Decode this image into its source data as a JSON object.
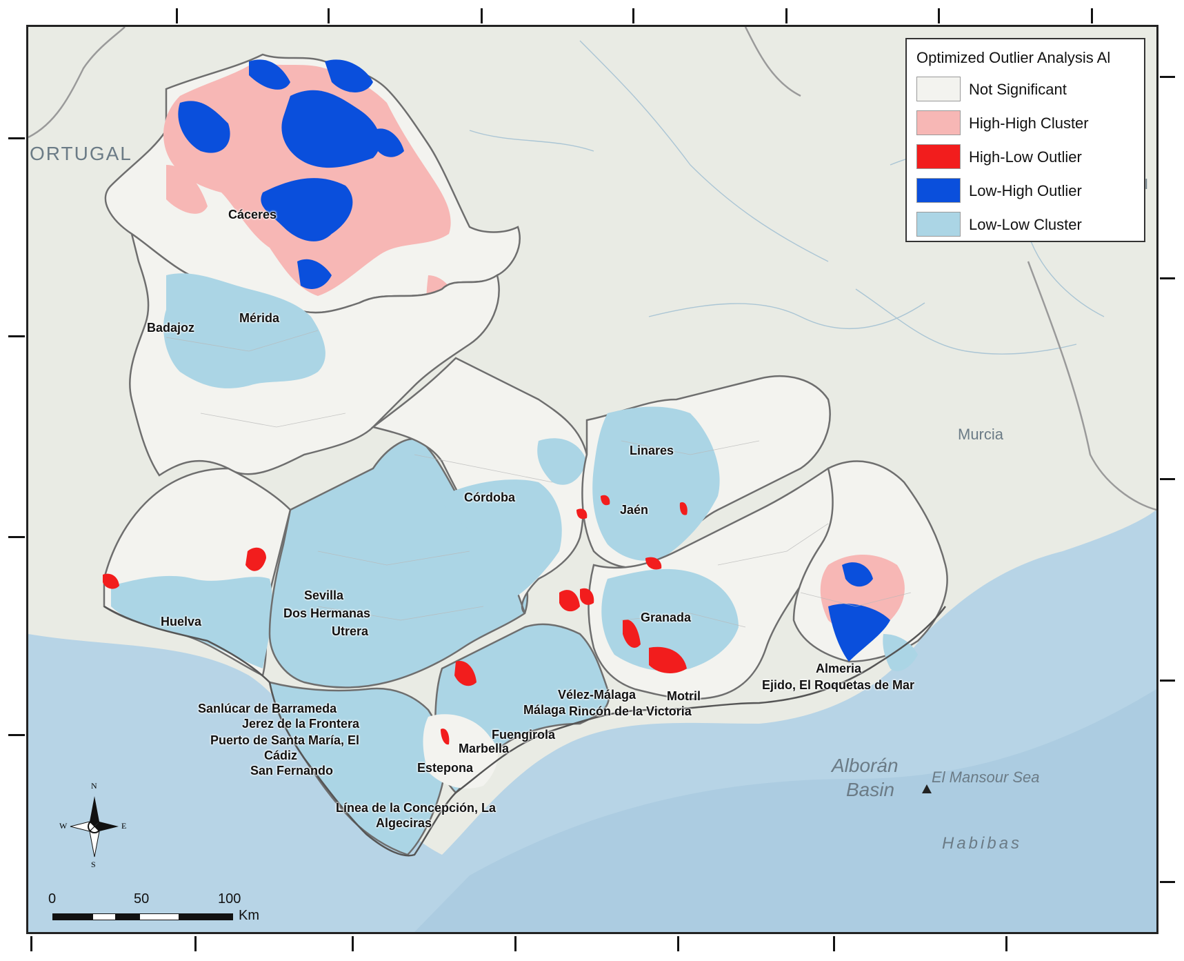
{
  "legend": {
    "title": "Optimized Outlier Analysis Al",
    "items": [
      {
        "label": "Not Significant",
        "color": "#f3f3ef"
      },
      {
        "label": "High-High Cluster",
        "color": "#f7b7b5"
      },
      {
        "label": "High-Low Outlier",
        "color": "#f21d1d"
      },
      {
        "label": "Low-High Outlier",
        "color": "#0a4fdc"
      },
      {
        "label": "Low-Low Cluster",
        "color": "#abd5e5"
      }
    ]
  },
  "colors": {
    "sea": "#b7d4e6",
    "land_background": "#e8ebe3",
    "border": "#777777",
    "province_border": "#6e6e6e"
  },
  "places": [
    "Cáceres",
    "Mérida",
    "Badajoz",
    "Linares",
    "Córdoba",
    "Jaén",
    "Sevilla",
    "Dos Hermanas",
    "Utrera",
    "Huelva",
    "Granada",
    "Almeria",
    "Ejido, El",
    "Roquetas de Mar",
    "Vélez-Málaga",
    "Motril",
    "Málaga",
    "Rincón de la Victoria",
    "Fuengirola",
    "Marbella",
    "Estepona",
    "Sanlúcar de Barrameda",
    "Jerez de la Frontera",
    "Puerto de Santa María, El",
    "Cádiz",
    "San Fernando",
    "Línea de la Concepción, La",
    "Algeciras"
  ],
  "basemap_labels": {
    "portugal": "ORTUGAL",
    "murcia": "Murcia",
    "alboran": "Alborán",
    "basin": "Basin",
    "mansour": "El Mansour Sea",
    "habibas": "Habibas",
    "edge_fragment": "al"
  },
  "scalebar": {
    "ticks": [
      "0",
      "50",
      "100"
    ],
    "unit": "Km"
  },
  "north_arrow": {
    "n": "N",
    "s": "S",
    "e": "E",
    "w": "W"
  }
}
